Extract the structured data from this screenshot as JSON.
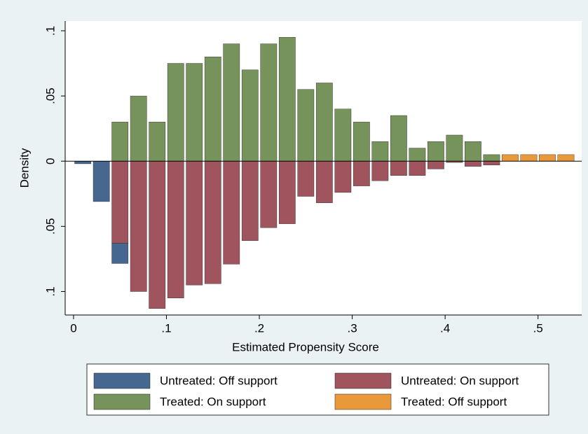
{
  "chart_data": {
    "type": "mirror-bar",
    "x_label": "Estimated Propensity Score",
    "y_label": "Density",
    "x": [
      0.01,
      0.03,
      0.05,
      0.07,
      0.09,
      0.11,
      0.13,
      0.15,
      0.17,
      0.19,
      0.21,
      0.23,
      0.25,
      0.27,
      0.29,
      0.31,
      0.33,
      0.35,
      0.37,
      0.39,
      0.41,
      0.43,
      0.45,
      0.47,
      0.49,
      0.51,
      0.53
    ],
    "series": [
      {
        "name": "Untreated: Off support",
        "color": "#46678f",
        "values": [
          -0.002,
          -0.031,
          -0.0155,
          null,
          null,
          null,
          null,
          null,
          null,
          null,
          null,
          null,
          null,
          null,
          null,
          null,
          null,
          null,
          null,
          null,
          null,
          null,
          null,
          null,
          null,
          null,
          null
        ]
      },
      {
        "name": "Untreated: On support",
        "color": "#a0545d",
        "values": [
          null,
          null,
          -0.063,
          -0.1,
          -0.113,
          -0.105,
          -0.095,
          -0.094,
          -0.079,
          -0.061,
          -0.051,
          -0.048,
          -0.027,
          -0.032,
          -0.024,
          -0.019,
          -0.015,
          -0.011,
          -0.011,
          -0.006,
          -0.001,
          -0.004,
          -0.003,
          null,
          null,
          null,
          null
        ]
      },
      {
        "name": "Treated: On support",
        "color": "#75935a",
        "values": [
          null,
          null,
          0.03,
          0.05,
          0.03,
          0.075,
          0.075,
          0.08,
          0.09,
          0.07,
          0.09,
          0.095,
          0.055,
          0.06,
          0.04,
          0.03,
          0.015,
          0.035,
          0.01,
          0.015,
          0.02,
          0.015,
          0.005,
          null,
          null,
          null,
          null
        ]
      },
      {
        "name": "Treated: Off support",
        "color": "#e9993a",
        "values": [
          null,
          null,
          null,
          null,
          null,
          null,
          null,
          null,
          null,
          null,
          null,
          null,
          null,
          null,
          null,
          null,
          null,
          null,
          null,
          null,
          null,
          null,
          null,
          0.005,
          0.005,
          0.005,
          0.005
        ]
      }
    ],
    "xlim": [
      -0.009,
      0.547
    ],
    "xticks": [
      0,
      {
        "value": 0.1,
        "label": ".1"
      },
      {
        "value": 0.2,
        "label": ".2"
      },
      {
        "value": 0.3,
        "label": ".3"
      },
      {
        "value": 0.4,
        "label": ".4"
      },
      {
        "value": 0.5,
        "label": ".5"
      }
    ],
    "ylim": [
      -0.118,
      0.1075
    ],
    "yticks": [
      {
        "value": -0.1,
        "label": ".1"
      },
      {
        "value": -0.05,
        "label": ".05"
      },
      0,
      {
        "value": 0.05,
        "label": ".05"
      },
      {
        "value": 0.1,
        "label": ".1"
      }
    ]
  }
}
